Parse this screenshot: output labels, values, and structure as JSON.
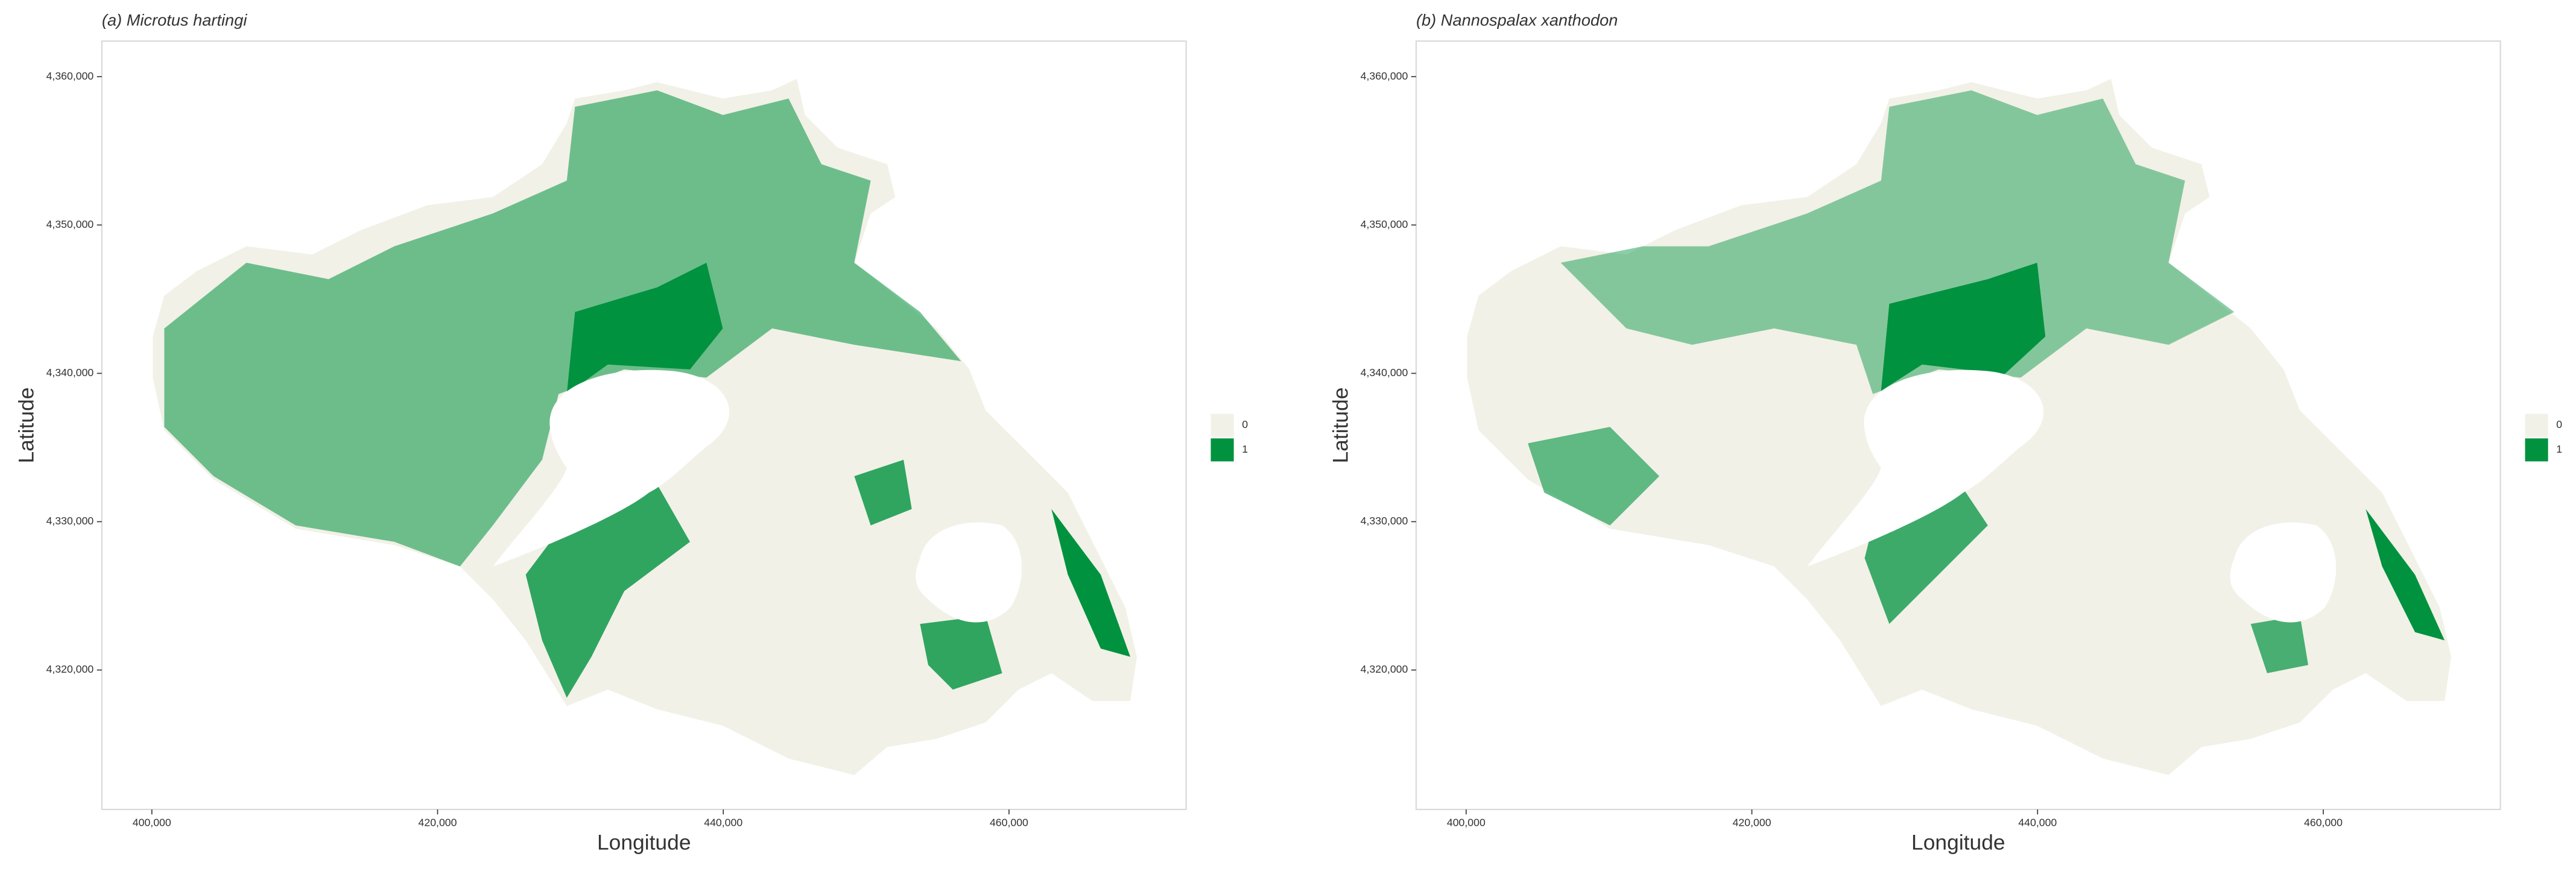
{
  "panels": [
    {
      "title": "(a) Microtus hartingi",
      "x_label": "Longitude",
      "y_label": "Latitude",
      "xlim": [
        396500,
        472400
      ],
      "ylim": [
        4310600,
        4362400
      ],
      "xticks": [
        {
          "value": 400000,
          "label": "400,000"
        },
        {
          "value": 420000,
          "label": "420,000"
        },
        {
          "value": 440000,
          "label": "440,000"
        },
        {
          "value": 460000,
          "label": "460,000"
        }
      ],
      "yticks": [
        {
          "value": 4320000,
          "label": "4,320,000"
        },
        {
          "value": 4330000,
          "label": "4,330,000"
        },
        {
          "value": 4340000,
          "label": "4,340,000"
        },
        {
          "value": 4350000,
          "label": "4,350,000"
        },
        {
          "value": 4360000,
          "label": "4,360,000"
        }
      ],
      "grid": false,
      "legend": [
        {
          "name": "0",
          "color": "#f1f1e7"
        },
        {
          "name": "1",
          "color": "#00923f"
        }
      ]
    },
    {
      "title": "(b) Nannospalax xanthodon",
      "x_label": "Longitude",
      "y_label": "Latitude",
      "xlim": [
        396500,
        472400
      ],
      "ylim": [
        4310600,
        4362400
      ],
      "xticks": [
        {
          "value": 400000,
          "label": "400,000"
        },
        {
          "value": 420000,
          "label": "420,000"
        },
        {
          "value": 440000,
          "label": "440,000"
        },
        {
          "value": 460000,
          "label": "460,000"
        }
      ],
      "yticks": [
        {
          "value": 4320000,
          "label": "4,320,000"
        },
        {
          "value": 4330000,
          "label": "4,330,000"
        },
        {
          "value": 4340000,
          "label": "4,340,000"
        },
        {
          "value": 4350000,
          "label": "4,350,000"
        },
        {
          "value": 4360000,
          "label": "4,360,000"
        }
      ],
      "grid": false,
      "legend": [
        {
          "name": "0",
          "color": "#f1f1e7"
        },
        {
          "name": "1",
          "color": "#00923f"
        }
      ]
    }
  ]
}
